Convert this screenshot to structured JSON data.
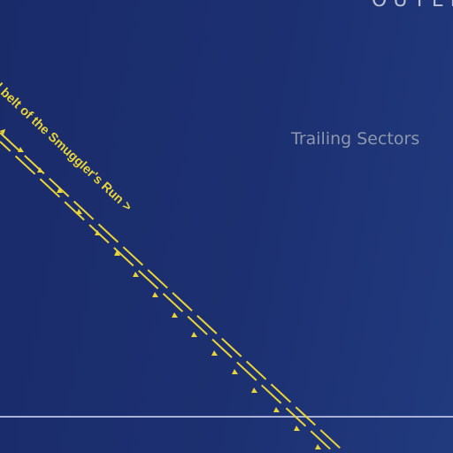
{
  "map": {
    "outer_label": "OUTER",
    "region_label": "Trailing Sectors",
    "route_label": "l belt of the Smuggler's Run >",
    "colors": {
      "route": "#e9d43a",
      "boundary": "#a9b2d6",
      "label": "#8d97ad"
    }
  }
}
